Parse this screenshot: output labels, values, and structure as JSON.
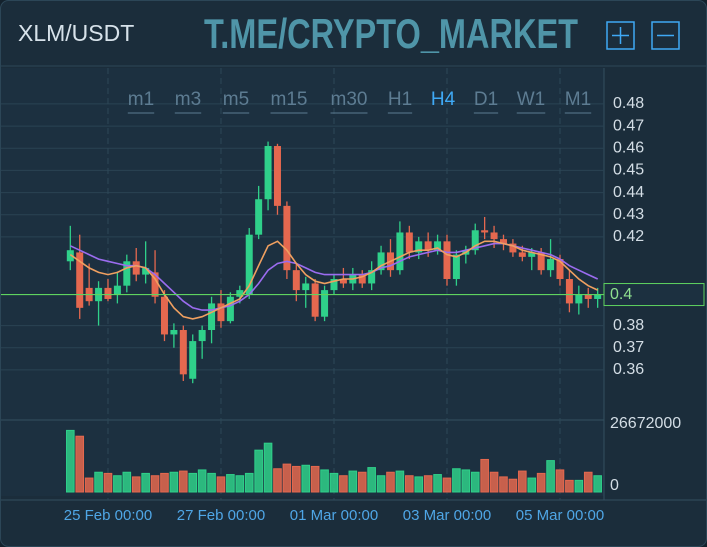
{
  "header": {
    "pair": "XLM/USDT",
    "banner": "T.ME/CRYPTO_MARKET",
    "timeframes": [
      "m1",
      "m3",
      "m5",
      "m15",
      "m30",
      "H1",
      "H4",
      "D1",
      "W1",
      "M1"
    ],
    "active_timeframe": 6
  },
  "chart_data": {
    "type": "candlestick",
    "categories": [
      null,
      null,
      null,
      null,
      "25 Feb 00:00",
      null,
      null,
      null,
      null,
      null,
      null,
      null,
      null,
      null,
      null,
      null,
      "27 Feb 00:00",
      null,
      null,
      null,
      null,
      null,
      null,
      null,
      null,
      null,
      null,
      null,
      "01 Mar 00:00",
      null,
      null,
      null,
      null,
      null,
      null,
      null,
      null,
      null,
      null,
      null,
      "03 Mar 00:00",
      null,
      null,
      null,
      null,
      null,
      null,
      null,
      null,
      null,
      null,
      null,
      "05 Mar 00:00",
      null,
      null,
      null,
      null
    ],
    "open": [
      0.409,
      0.413,
      0.397,
      0.391,
      0.397,
      0.394,
      0.398,
      0.409,
      0.403,
      0.404,
      0.393,
      0.376,
      0.378,
      0.356,
      0.373,
      0.378,
      0.39,
      0.382,
      0.393,
      0.394,
      0.421,
      0.437,
      0.461,
      0.434,
      0.405,
      0.396,
      0.399,
      0.384,
      0.396,
      0.401,
      0.399,
      0.403,
      0.399,
      0.405,
      0.413,
      0.405,
      0.422,
      0.413,
      0.418,
      0.414,
      0.418,
      0.401,
      0.412,
      0.414,
      0.423,
      0.422,
      0.419,
      0.417,
      0.413,
      0.411,
      0.413,
      0.405,
      0.41,
      0.401,
      0.39,
      0.394,
      0.392
    ],
    "high": [
      0.425,
      0.421,
      0.408,
      0.4,
      0.401,
      0.404,
      0.412,
      0.415,
      0.418,
      0.414,
      0.396,
      0.381,
      0.38,
      0.376,
      0.38,
      0.393,
      0.396,
      0.395,
      0.398,
      0.424,
      0.443,
      0.463,
      0.462,
      0.436,
      0.408,
      0.402,
      0.401,
      0.398,
      0.403,
      0.406,
      0.406,
      0.405,
      0.409,
      0.416,
      0.419,
      0.427,
      0.425,
      0.42,
      0.422,
      0.421,
      0.421,
      0.414,
      0.416,
      0.426,
      0.429,
      0.425,
      0.421,
      0.419,
      0.416,
      0.415,
      0.415,
      0.419,
      0.412,
      0.405,
      0.398,
      0.397,
      0.397
    ],
    "low": [
      0.405,
      0.383,
      0.389,
      0.38,
      0.391,
      0.39,
      0.395,
      0.4,
      0.399,
      0.39,
      0.373,
      0.37,
      0.355,
      0.354,
      0.365,
      0.372,
      0.379,
      0.381,
      0.39,
      0.392,
      0.419,
      0.432,
      0.43,
      0.401,
      0.391,
      0.388,
      0.382,
      0.382,
      0.394,
      0.397,
      0.396,
      0.397,
      0.396,
      0.403,
      0.402,
      0.403,
      0.41,
      0.41,
      0.411,
      0.412,
      0.398,
      0.398,
      0.408,
      0.412,
      0.419,
      0.415,
      0.414,
      0.411,
      0.409,
      0.405,
      0.403,
      0.402,
      0.398,
      0.386,
      0.385,
      0.388,
      0.388
    ],
    "close": [
      0.414,
      0.388,
      0.391,
      0.397,
      0.392,
      0.398,
      0.409,
      0.403,
      0.406,
      0.393,
      0.376,
      0.378,
      0.358,
      0.373,
      0.378,
      0.39,
      0.382,
      0.393,
      0.396,
      0.421,
      0.437,
      0.461,
      0.434,
      0.405,
      0.396,
      0.399,
      0.384,
      0.396,
      0.401,
      0.399,
      0.403,
      0.399,
      0.405,
      0.413,
      0.405,
      0.422,
      0.413,
      0.418,
      0.414,
      0.418,
      0.401,
      0.412,
      0.414,
      0.423,
      0.422,
      0.419,
      0.417,
      0.413,
      0.411,
      0.413,
      0.405,
      0.41,
      0.401,
      0.39,
      0.394,
      0.392,
      0.394
    ],
    "volume": [
      26500000,
      24000000,
      6000000,
      8500000,
      8000000,
      7000000,
      8500000,
      6500000,
      8000000,
      7000000,
      8000000,
      8500000,
      9000000,
      8000000,
      9500000,
      8000000,
      6500000,
      7500000,
      7000000,
      8000000,
      18000000,
      21000000,
      10000000,
      12000000,
      11000000,
      11500000,
      11000000,
      9500000,
      8000000,
      7000000,
      9000000,
      8500000,
      10500000,
      7000000,
      8500000,
      9000000,
      7000000,
      6500000,
      7000000,
      7500000,
      6000000,
      10000000,
      9500000,
      8500000,
      14000000,
      8500000,
      6500000,
      5500000,
      9000000,
      6000000,
      8000000,
      13500000,
      9500000,
      5000000,
      5000000,
      8500000,
      7000000
    ],
    "series": [
      {
        "color": "#9b6cf0",
        "values": [
          0.416,
          0.414,
          0.412,
          0.41,
          0.409,
          0.408,
          0.407,
          0.407,
          0.406,
          0.403,
          0.399,
          0.395,
          0.391,
          0.388,
          0.387,
          0.387,
          0.388,
          0.389,
          0.391,
          0.394,
          0.399,
          0.405,
          0.408,
          0.409,
          0.408,
          0.406,
          0.404,
          0.403,
          0.403,
          0.403,
          0.403,
          0.403,
          0.404,
          0.406,
          0.407,
          0.409,
          0.411,
          0.412,
          0.413,
          0.414,
          0.413,
          0.413,
          0.414,
          0.415,
          0.416,
          0.417,
          0.417,
          0.416,
          0.415,
          0.414,
          0.413,
          0.412,
          0.41,
          0.407,
          0.405,
          0.403,
          0.401
        ]
      },
      {
        "color": "#f0a060",
        "values": [
          0.412,
          0.409,
          0.406,
          0.404,
          0.403,
          0.404,
          0.406,
          0.407,
          0.406,
          0.401,
          0.394,
          0.388,
          0.384,
          0.383,
          0.384,
          0.386,
          0.388,
          0.39,
          0.392,
          0.398,
          0.407,
          0.416,
          0.418,
          0.414,
          0.408,
          0.403,
          0.4,
          0.399,
          0.4,
          0.401,
          0.401,
          0.402,
          0.404,
          0.407,
          0.409,
          0.411,
          0.413,
          0.414,
          0.414,
          0.415,
          0.412,
          0.411,
          0.413,
          0.416,
          0.418,
          0.418,
          0.417,
          0.416,
          0.414,
          0.413,
          0.412,
          0.411,
          0.409,
          0.405,
          0.401,
          0.398,
          0.396
        ]
      }
    ],
    "up_color": "#2fd08a",
    "down_color": "#e5684f",
    "ylim": [
      0.3374,
      0.4962
    ],
    "yticks": [
      0.48,
      0.47,
      0.46,
      0.45,
      0.44,
      0.43,
      0.42,
      0.38,
      0.37,
      0.36
    ],
    "last_price": 0.394,
    "last_price_label": "0.4",
    "last_price_color": "#5fd35f",
    "volume_lim": [
      0,
      26672000
    ],
    "volume_ticks": [
      26672000,
      0
    ],
    "grid": true
  }
}
